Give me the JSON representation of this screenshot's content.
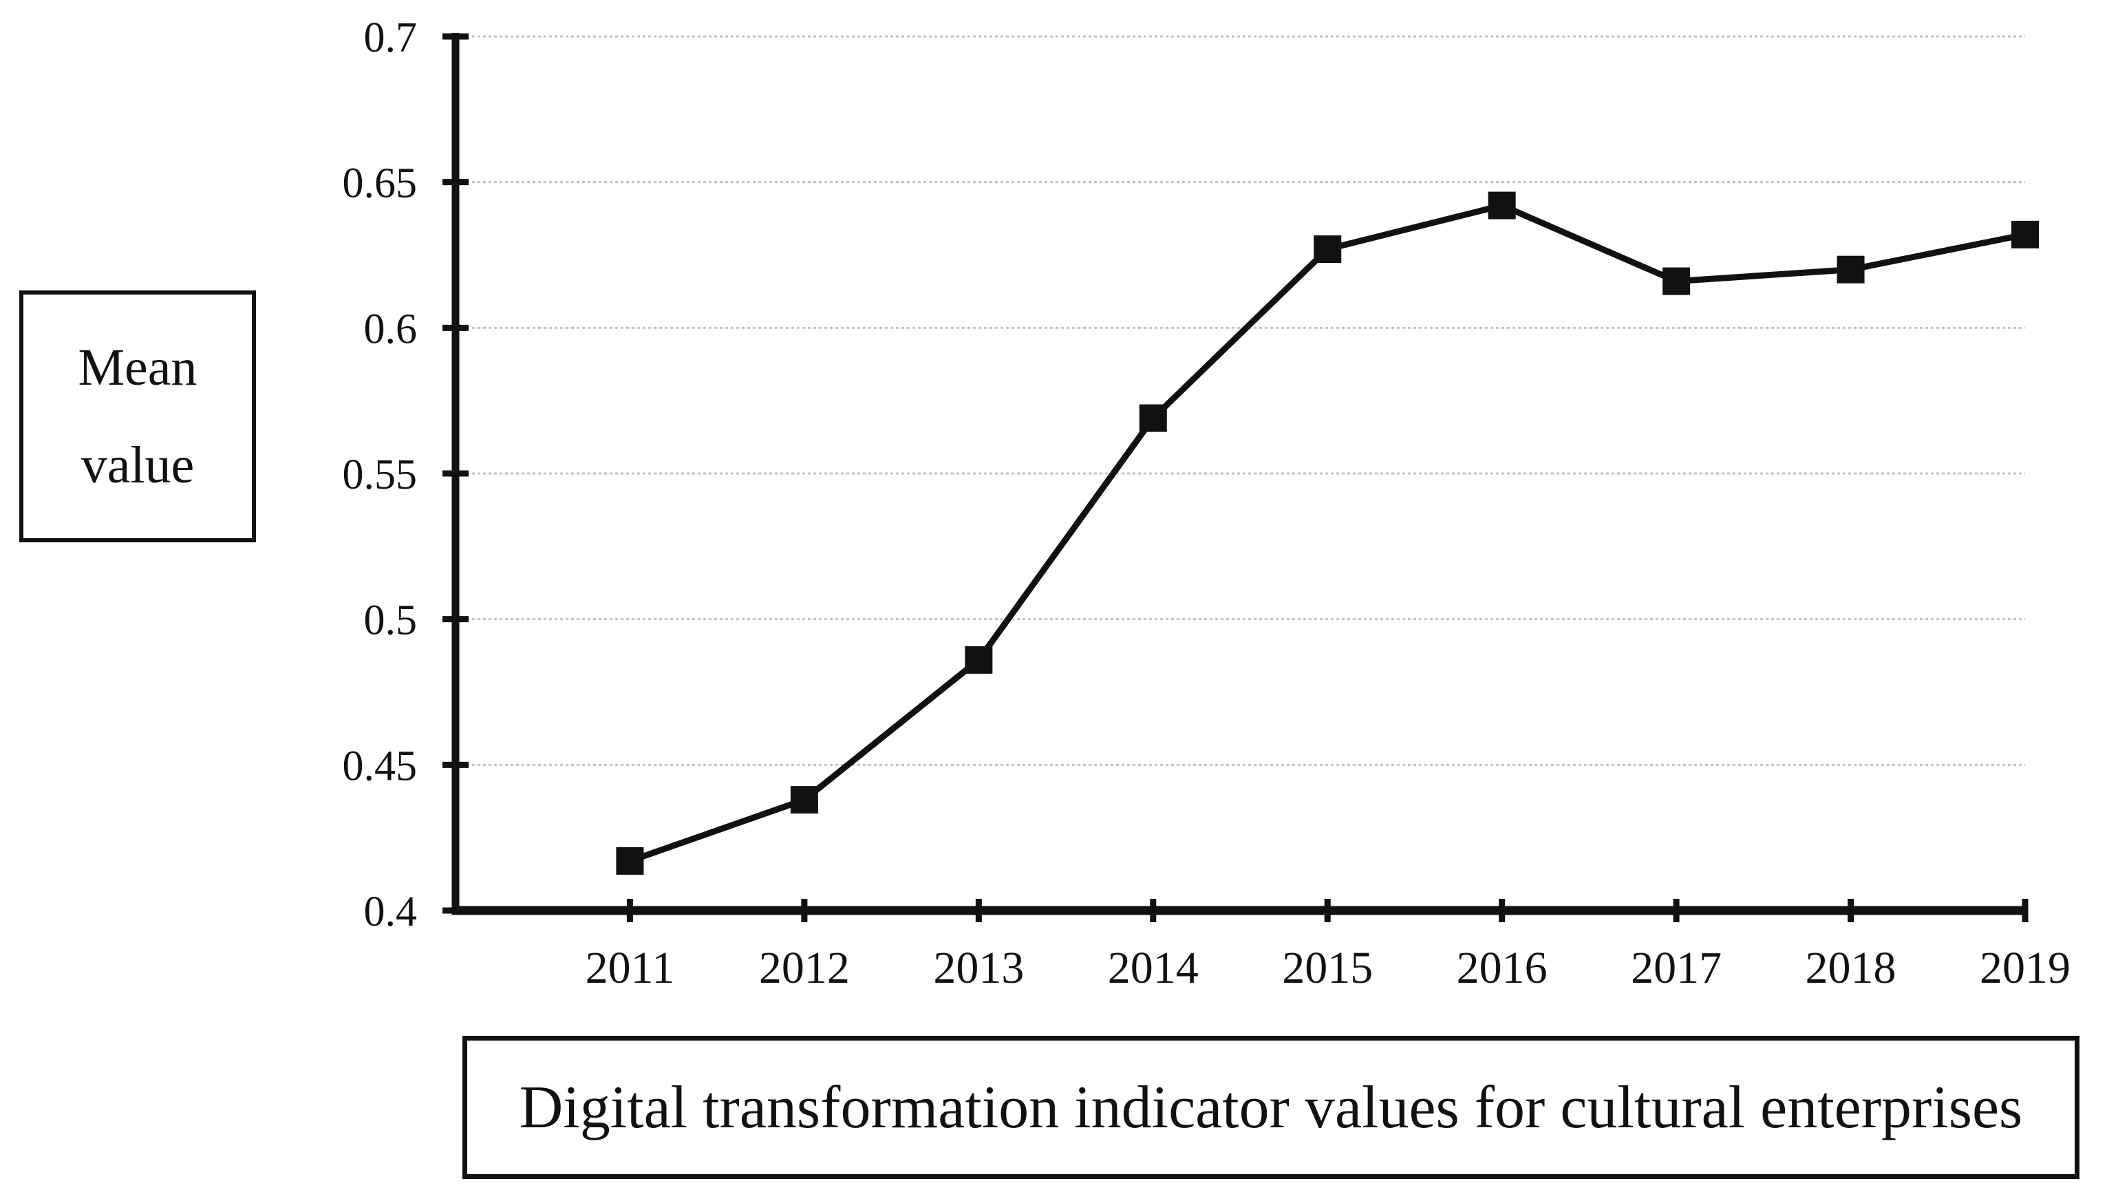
{
  "figure": {
    "background": "#ffffff",
    "text_color": "#111111",
    "y_axis_box": {
      "line1": "Mean",
      "line2": "value"
    },
    "title_box": {
      "text": "Digital transformation indicator values for cultural enterprises"
    }
  },
  "chart_data": {
    "type": "line",
    "title": "Digital transformation indicator values for cultural enterprises",
    "ylabel": "Mean value",
    "xlabel": "",
    "categories": [
      "2011",
      "2012",
      "2013",
      "2014",
      "2015",
      "2016",
      "2017",
      "2018",
      "2019"
    ],
    "series": [
      {
        "values": [
          0.417,
          0.438,
          0.486,
          0.569,
          0.627,
          0.642,
          0.616,
          0.62,
          0.632
        ]
      }
    ],
    "ylim": [
      0.4,
      0.7
    ],
    "y_tick_labels": [
      "0.4",
      "0.45",
      "0.5",
      "0.55",
      "0.6",
      "0.65",
      "0.7"
    ],
    "y_ticks": [
      0.4,
      0.45,
      0.5,
      0.55,
      0.6,
      0.65,
      0.7
    ],
    "grid": true,
    "legend_position": "none",
    "marker": "square",
    "line_color": "#111111",
    "marker_color": "#111111",
    "grid_color": "#c3c3c3",
    "axis_color": "#111111"
  }
}
